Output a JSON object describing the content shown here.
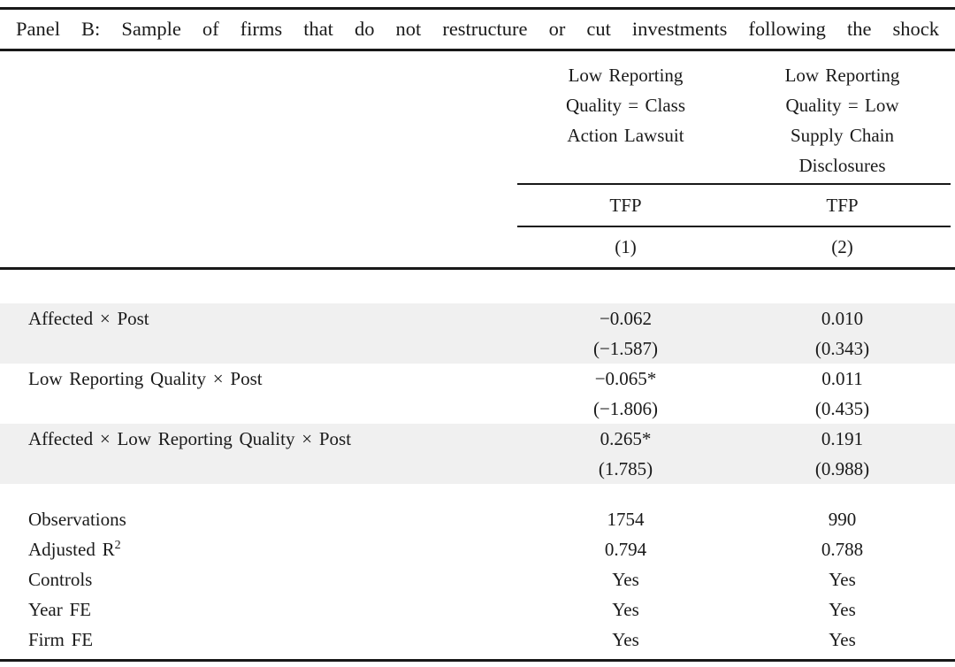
{
  "panel_title": "Panel B: Sample of firms that do not restructure or cut investments following the shock",
  "columns": [
    {
      "group_lines": [
        "Low Reporting",
        "Quality = Class",
        "Action Lawsuit"
      ],
      "dep_var": "TFP",
      "number": "(1)"
    },
    {
      "group_lines": [
        "Low Reporting",
        "Quality = Low",
        "Supply Chain",
        "Disclosures"
      ],
      "dep_var": "TFP",
      "number": "(2)"
    }
  ],
  "coefficient_rows": [
    {
      "label": "Affected × Post",
      "shaded": true,
      "values": [
        {
          "estimate": "−0.062",
          "tstat": "(−1.587)"
        },
        {
          "estimate": "0.010",
          "tstat": "(0.343)"
        }
      ]
    },
    {
      "label": "Low Reporting Quality × Post",
      "shaded": false,
      "values": [
        {
          "estimate": "−0.065*",
          "tstat": "(−1.806)"
        },
        {
          "estimate": "0.011",
          "tstat": "(0.435)"
        }
      ]
    },
    {
      "label": "Affected × Low Reporting Quality × Post",
      "shaded": true,
      "values": [
        {
          "estimate": "0.265*",
          "tstat": "(1.785)"
        },
        {
          "estimate": "0.191",
          "tstat": "(0.988)"
        }
      ]
    }
  ],
  "stats_rows": [
    {
      "label": "Observations",
      "values": [
        "1754",
        "990"
      ]
    },
    {
      "label": "Adjusted R",
      "label_sup": "2",
      "values": [
        "0.794",
        "0.788"
      ]
    },
    {
      "label": "Controls",
      "values": [
        "Yes",
        "Yes"
      ]
    },
    {
      "label": "Year FE",
      "values": [
        "Yes",
        "Yes"
      ]
    },
    {
      "label": "Firm FE",
      "values": [
        "Yes",
        "Yes"
      ]
    }
  ],
  "colors": {
    "row_shading": "#f0f0f0",
    "text": "#1a1a1a",
    "rule": "#181818"
  }
}
